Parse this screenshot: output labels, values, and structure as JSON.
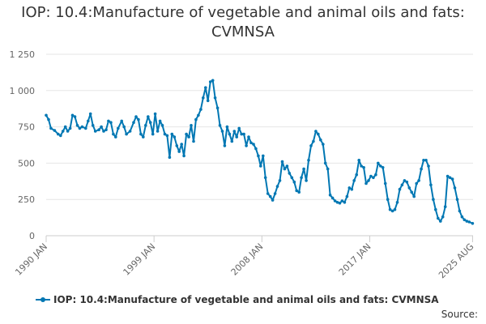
{
  "chart_data": {
    "type": "line",
    "title_lines": [
      "IOP: 10.4:Manufacture of vegetable and animal oils and fats:",
      "CVMNSA"
    ],
    "xlabel": "",
    "ylabel": "",
    "ylim": [
      0,
      1250
    ],
    "yticks": [
      0,
      250,
      500,
      750,
      1000,
      1250
    ],
    "ytick_labels": [
      "0",
      "250",
      "500",
      "750",
      "1 000",
      "1 250"
    ],
    "xlim": [
      1990.0,
      2025.62
    ],
    "xticks": [
      1990.0,
      1999.0,
      2008.0,
      2017.0,
      2025.58
    ],
    "xtick_labels": [
      "1990 JAN",
      "1999 JAN",
      "2008 JAN",
      "2017 JAN",
      "2025 AUG"
    ],
    "grid": "horizontal",
    "legend_position": "bottom",
    "series": [
      {
        "name": "IOP: 10.4:Manufacture of vegetable and animal oils and fats: CVMNSA",
        "color": "#0077b3",
        "points": [
          [
            1990.0,
            830
          ],
          [
            1990.2,
            800
          ],
          [
            1990.4,
            740
          ],
          [
            1990.7,
            725
          ],
          [
            1991.0,
            700
          ],
          [
            1991.2,
            690
          ],
          [
            1991.4,
            720
          ],
          [
            1991.6,
            750
          ],
          [
            1991.8,
            720
          ],
          [
            1992.0,
            740
          ],
          [
            1992.2,
            830
          ],
          [
            1992.4,
            820
          ],
          [
            1992.6,
            760
          ],
          [
            1992.8,
            740
          ],
          [
            1993.0,
            750
          ],
          [
            1993.3,
            740
          ],
          [
            1993.5,
            790
          ],
          [
            1993.7,
            840
          ],
          [
            1993.9,
            760
          ],
          [
            1994.1,
            720
          ],
          [
            1994.4,
            730
          ],
          [
            1994.6,
            750
          ],
          [
            1994.8,
            720
          ],
          [
            1995.0,
            730
          ],
          [
            1995.2,
            790
          ],
          [
            1995.4,
            780
          ],
          [
            1995.6,
            700
          ],
          [
            1995.8,
            680
          ],
          [
            1996.0,
            740
          ],
          [
            1996.3,
            790
          ],
          [
            1996.5,
            750
          ],
          [
            1996.7,
            700
          ],
          [
            1997.0,
            720
          ],
          [
            1997.3,
            780
          ],
          [
            1997.5,
            820
          ],
          [
            1997.7,
            800
          ],
          [
            1997.9,
            700
          ],
          [
            1998.1,
            680
          ],
          [
            1998.3,
            760
          ],
          [
            1998.5,
            820
          ],
          [
            1998.7,
            780
          ],
          [
            1998.9,
            700
          ],
          [
            1999.1,
            840
          ],
          [
            1999.3,
            720
          ],
          [
            1999.5,
            790
          ],
          [
            1999.7,
            760
          ],
          [
            1999.9,
            700
          ],
          [
            2000.1,
            690
          ],
          [
            2000.3,
            540
          ],
          [
            2000.5,
            700
          ],
          [
            2000.7,
            680
          ],
          [
            2000.9,
            620
          ],
          [
            2001.1,
            580
          ],
          [
            2001.3,
            630
          ],
          [
            2001.5,
            550
          ],
          [
            2001.7,
            700
          ],
          [
            2001.9,
            680
          ],
          [
            2002.1,
            760
          ],
          [
            2002.3,
            650
          ],
          [
            2002.5,
            800
          ],
          [
            2002.7,
            830
          ],
          [
            2002.9,
            870
          ],
          [
            2003.1,
            950
          ],
          [
            2003.3,
            1020
          ],
          [
            2003.5,
            930
          ],
          [
            2003.7,
            1060
          ],
          [
            2003.9,
            1070
          ],
          [
            2004.1,
            950
          ],
          [
            2004.3,
            880
          ],
          [
            2004.5,
            760
          ],
          [
            2004.7,
            720
          ],
          [
            2004.9,
            620
          ],
          [
            2005.1,
            750
          ],
          [
            2005.3,
            700
          ],
          [
            2005.5,
            650
          ],
          [
            2005.7,
            720
          ],
          [
            2005.9,
            680
          ],
          [
            2006.1,
            740
          ],
          [
            2006.3,
            700
          ],
          [
            2006.5,
            700
          ],
          [
            2006.7,
            620
          ],
          [
            2006.9,
            680
          ],
          [
            2007.1,
            640
          ],
          [
            2007.3,
            630
          ],
          [
            2007.5,
            600
          ],
          [
            2007.7,
            550
          ],
          [
            2007.9,
            480
          ],
          [
            2008.1,
            550
          ],
          [
            2008.3,
            400
          ],
          [
            2008.5,
            290
          ],
          [
            2008.7,
            270
          ],
          [
            2008.9,
            245
          ],
          [
            2009.1,
            290
          ],
          [
            2009.3,
            340
          ],
          [
            2009.5,
            380
          ],
          [
            2009.7,
            510
          ],
          [
            2009.9,
            460
          ],
          [
            2010.1,
            480
          ],
          [
            2010.3,
            430
          ],
          [
            2010.5,
            400
          ],
          [
            2010.7,
            370
          ],
          [
            2010.9,
            310
          ],
          [
            2011.1,
            300
          ],
          [
            2011.3,
            400
          ],
          [
            2011.5,
            460
          ],
          [
            2011.7,
            380
          ],
          [
            2011.9,
            520
          ],
          [
            2012.1,
            620
          ],
          [
            2012.3,
            650
          ],
          [
            2012.5,
            720
          ],
          [
            2012.7,
            700
          ],
          [
            2012.9,
            660
          ],
          [
            2013.1,
            630
          ],
          [
            2013.3,
            500
          ],
          [
            2013.5,
            460
          ],
          [
            2013.7,
            280
          ],
          [
            2013.9,
            260
          ],
          [
            2014.1,
            240
          ],
          [
            2014.3,
            230
          ],
          [
            2014.5,
            225
          ],
          [
            2014.7,
            240
          ],
          [
            2014.9,
            230
          ],
          [
            2015.1,
            270
          ],
          [
            2015.3,
            330
          ],
          [
            2015.5,
            320
          ],
          [
            2015.7,
            380
          ],
          [
            2015.9,
            420
          ],
          [
            2016.1,
            520
          ],
          [
            2016.3,
            480
          ],
          [
            2016.5,
            470
          ],
          [
            2016.7,
            360
          ],
          [
            2016.9,
            380
          ],
          [
            2017.1,
            410
          ],
          [
            2017.3,
            400
          ],
          [
            2017.5,
            420
          ],
          [
            2017.7,
            500
          ],
          [
            2017.9,
            480
          ],
          [
            2018.1,
            470
          ],
          [
            2018.3,
            360
          ],
          [
            2018.5,
            250
          ],
          [
            2018.7,
            180
          ],
          [
            2018.9,
            170
          ],
          [
            2019.1,
            180
          ],
          [
            2019.3,
            230
          ],
          [
            2019.5,
            320
          ],
          [
            2019.7,
            350
          ],
          [
            2019.9,
            380
          ],
          [
            2020.1,
            370
          ],
          [
            2020.3,
            330
          ],
          [
            2020.5,
            300
          ],
          [
            2020.7,
            270
          ],
          [
            2020.9,
            360
          ],
          [
            2021.1,
            380
          ],
          [
            2021.3,
            460
          ],
          [
            2021.5,
            520
          ],
          [
            2021.7,
            520
          ],
          [
            2021.9,
            480
          ],
          [
            2022.1,
            350
          ],
          [
            2022.3,
            250
          ],
          [
            2022.5,
            180
          ],
          [
            2022.7,
            120
          ],
          [
            2022.9,
            100
          ],
          [
            2023.1,
            130
          ],
          [
            2023.3,
            200
          ],
          [
            2023.5,
            410
          ],
          [
            2023.7,
            400
          ],
          [
            2023.9,
            390
          ],
          [
            2024.1,
            330
          ],
          [
            2024.3,
            250
          ],
          [
            2024.5,
            170
          ],
          [
            2024.7,
            130
          ],
          [
            2024.9,
            110
          ],
          [
            2025.1,
            100
          ],
          [
            2025.3,
            95
          ],
          [
            2025.58,
            85
          ]
        ]
      }
    ]
  },
  "source_label": "Source:"
}
